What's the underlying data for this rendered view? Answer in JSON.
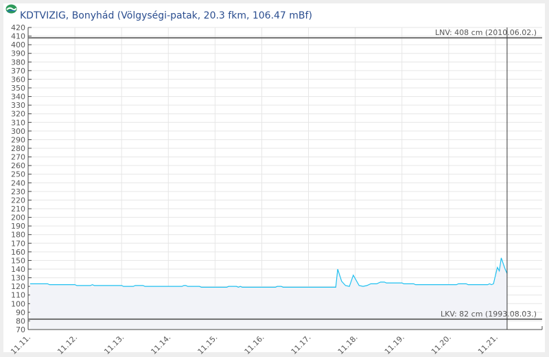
{
  "title": "KDTVIZIG, Bonyhád (Völgységi-patak, 20.3 fkm, 106.47 mBf)",
  "logo_icon": "kdtvizig-logo",
  "chart_data": {
    "type": "area",
    "title": "KDTVIZIG, Bonyhád (Völgységi-patak, 20.3 fkm, 106.47 mBf)",
    "xlabel": "",
    "ylabel": "",
    "ylim": [
      70,
      420
    ],
    "xlim": [
      "11.11 00:00",
      "11.22 00:00"
    ],
    "yticks": [
      70,
      80,
      90,
      100,
      110,
      120,
      130,
      140,
      150,
      160,
      170,
      180,
      190,
      200,
      210,
      220,
      230,
      240,
      250,
      260,
      270,
      280,
      290,
      300,
      310,
      320,
      330,
      340,
      350,
      360,
      370,
      380,
      390,
      400,
      410,
      420
    ],
    "xticks": [
      "11.11.",
      "11.12.",
      "11.13.",
      "11.14.",
      "11.15.",
      "11.16.",
      "11.17.",
      "11.18.",
      "11.19.",
      "11.20.",
      "11.21."
    ],
    "grid": true,
    "line_color": "#1ec0f0",
    "fill_color": "#f2f3f8",
    "reference_lines": [
      {
        "label": "LNV: 408 cm (2010.06.02.)",
        "value": 408
      },
      {
        "label": "LKV: 82 cm (1993.08.03.)",
        "value": 82
      }
    ],
    "crosshair_x": "11.21 06:00",
    "points": [
      [
        "11.11 01:00",
        123
      ],
      [
        "11.11 10:00",
        123
      ],
      [
        "11.11 11:00",
        122
      ],
      [
        "11.12 00:00",
        122
      ],
      [
        "11.12 01:00",
        121
      ],
      [
        "11.12 08:00",
        121
      ],
      [
        "11.12 09:00",
        122
      ],
      [
        "11.12 10:00",
        121
      ],
      [
        "11.13 00:00",
        121
      ],
      [
        "11.13 01:00",
        120
      ],
      [
        "11.13 06:00",
        120
      ],
      [
        "11.13 07:00",
        121
      ],
      [
        "11.13 11:00",
        121
      ],
      [
        "11.13 12:00",
        120
      ],
      [
        "11.14 07:00",
        120
      ],
      [
        "11.14 08:00",
        121
      ],
      [
        "11.14 09:00",
        121
      ],
      [
        "11.14 10:00",
        120
      ],
      [
        "11.14 16:00",
        120
      ],
      [
        "11.14 17:00",
        119
      ],
      [
        "11.15 06:00",
        119
      ],
      [
        "11.15 07:00",
        120
      ],
      [
        "11.15 11:00",
        120
      ],
      [
        "11.15 12:00",
        119
      ],
      [
        "11.15 13:00",
        120
      ],
      [
        "11.15 14:00",
        119
      ],
      [
        "11.16 07:00",
        119
      ],
      [
        "11.16 08:00",
        120
      ],
      [
        "11.16 10:00",
        120
      ],
      [
        "11.16 11:00",
        119
      ],
      [
        "11.17 14:00",
        119
      ],
      [
        "11.17 15:00",
        140
      ],
      [
        "11.17 17:00",
        126
      ],
      [
        "11.17 19:00",
        121
      ],
      [
        "11.17 21:00",
        120
      ],
      [
        "11.17 23:00",
        133
      ],
      [
        "11.18 02:00",
        121
      ],
      [
        "11.18 04:00",
        120
      ],
      [
        "11.18 06:00",
        121
      ],
      [
        "11.18 08:00",
        123
      ],
      [
        "11.18 11:00",
        123
      ],
      [
        "11.18 13:00",
        125
      ],
      [
        "11.18 15:00",
        125
      ],
      [
        "11.18 16:00",
        124
      ],
      [
        "11.19 00:00",
        124
      ],
      [
        "11.19 01:00",
        123
      ],
      [
        "11.19 06:00",
        123
      ],
      [
        "11.19 07:00",
        122
      ],
      [
        "11.20 04:00",
        122
      ],
      [
        "11.20 05:00",
        123
      ],
      [
        "11.20 09:00",
        123
      ],
      [
        "11.20 10:00",
        122
      ],
      [
        "11.20 20:00",
        122
      ],
      [
        "11.20 21:00",
        123
      ],
      [
        "11.20 22:00",
        122
      ],
      [
        "11.20 23:00",
        123
      ],
      [
        "11.21 01:00",
        142
      ],
      [
        "11.21 02:00",
        138
      ],
      [
        "11.21 03:00",
        153
      ],
      [
        "11.21 05:00",
        140
      ],
      [
        "11.21 06:00",
        135
      ]
    ]
  }
}
